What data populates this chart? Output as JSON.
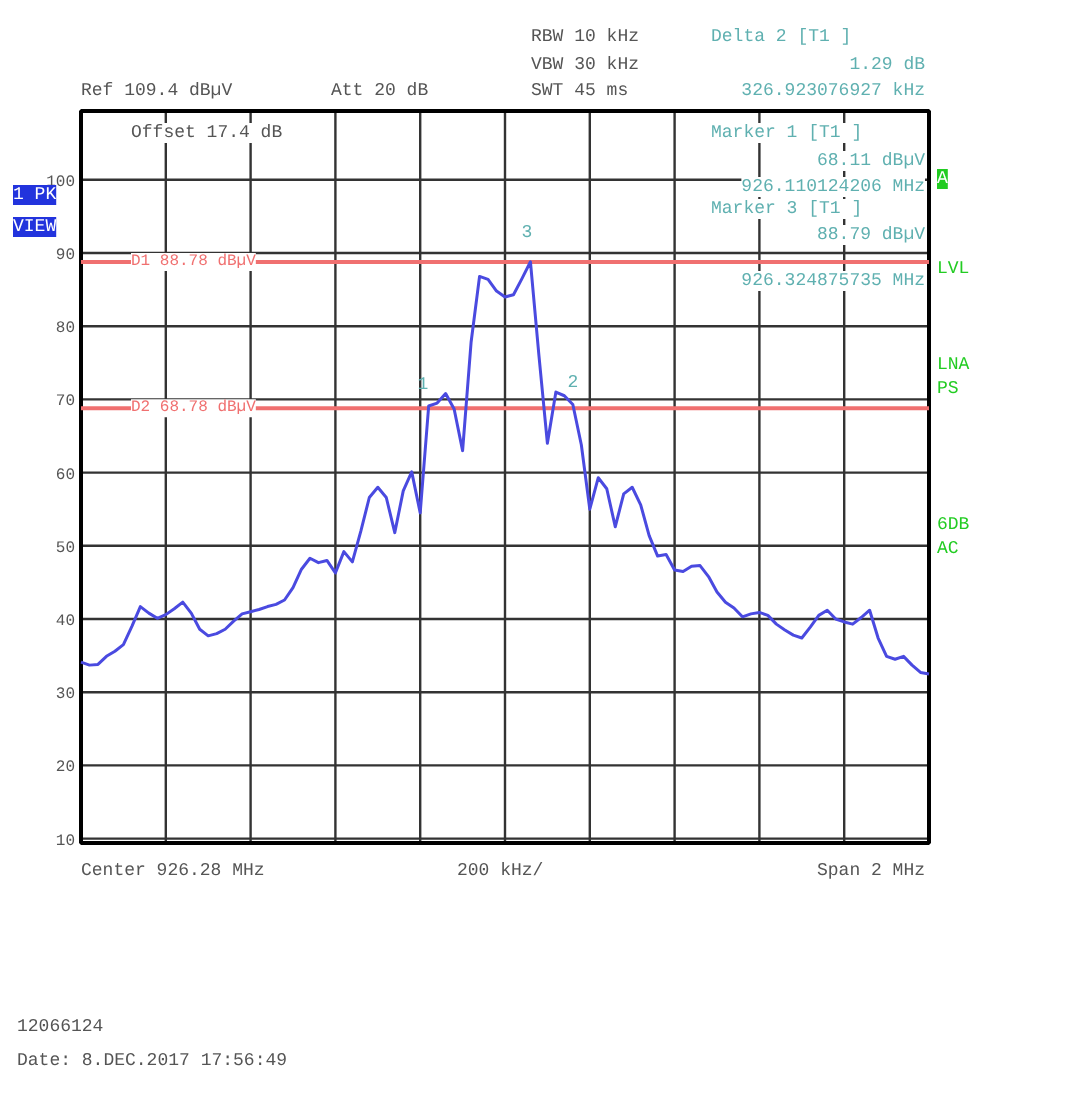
{
  "chart_data": {
    "type": "line",
    "categories": [
      null,
      null,
      null,
      null,
      null,
      null,
      null,
      null,
      null,
      null,
      null,
      null,
      null,
      null,
      null,
      null,
      null,
      null,
      null,
      null,
      null,
      null,
      null,
      null,
      null,
      null,
      null,
      null,
      null,
      null,
      null,
      null,
      null,
      null,
      null,
      null,
      null,
      null,
      null,
      null,
      null,
      null,
      null,
      null,
      null,
      null,
      null,
      null,
      null,
      null,
      null,
      null,
      null,
      null,
      null,
      null,
      null,
      null,
      null,
      null,
      null,
      null,
      null,
      null,
      null,
      null,
      null,
      null,
      null,
      null,
      null,
      null,
      null,
      null,
      null,
      null,
      null,
      null,
      null,
      null,
      null,
      null,
      null,
      null,
      null,
      null,
      null,
      null,
      null,
      null,
      null,
      null,
      null,
      null,
      null,
      null,
      null,
      null,
      null,
      null,
      null
    ],
    "series": [
      {
        "color": "#4a4ae0",
        "values": [
          34.1,
          33.7,
          33.8,
          34.9,
          35.6,
          36.5,
          39,
          41.7,
          40.8,
          40.1,
          40.6,
          41.4,
          42.3,
          40.8,
          38.6,
          37.7,
          38,
          38.6,
          39.7,
          40.7,
          41,
          41.3,
          41.7,
          42,
          42.6,
          44.3,
          46.8,
          48.3,
          47.7,
          48,
          46.3,
          49.2,
          47.8,
          52,
          56.6,
          58,
          56.6,
          51.8,
          57.5,
          60.1,
          54.5,
          69.1,
          69.5,
          70.8,
          68.7,
          63,
          77.8,
          86.8,
          86.4,
          84.8,
          84,
          84.3,
          86.5,
          88.8,
          76,
          64,
          71,
          70.5,
          69.3,
          63.8,
          55,
          59.3,
          57.8,
          52.6,
          57.1,
          58,
          55.6,
          51.4,
          48.6,
          48.8,
          46.7,
          46.5,
          47.2,
          47.3,
          45.8,
          43.7,
          42.3,
          41.5,
          40.3,
          40.7,
          40.9,
          40.5,
          39.3,
          38.5,
          37.8,
          37.4,
          38.9,
          40.5,
          41.2,
          40,
          39.6,
          39.3,
          40.2,
          41.2,
          37.4,
          34.9,
          34.5,
          34.9,
          33.7,
          32.7,
          32.5
        ]
      }
    ],
    "ylim": [
      9.4,
      109.4
    ],
    "yticks": [
      10,
      20,
      30,
      40,
      50,
      60,
      70,
      80,
      90,
      100
    ],
    "tick_labels": "y",
    "grid": true,
    "marker": "none",
    "line_style": "solid",
    "ref_lines": [
      {
        "axis": "y",
        "value": 88.78,
        "label": "D1 88.78 dBµV",
        "color": "#f07070"
      },
      {
        "axis": "y",
        "value": 68.78,
        "label": "D2 68.78 dBµV",
        "color": "#f07070"
      }
    ],
    "annotations": [
      "RBW 10 kHz",
      "VBW 30 kHz",
      "SWT 45 ms",
      "Ref 109.4 dBµV",
      "Att 20 dB",
      "Delta 2 [T1 ]",
      "1.29 dB",
      "326.923076927 kHz",
      "Offset 17.4 dB",
      "Marker 1 [T1 ]",
      "68.11 dBµV",
      "926.110124206 MHz",
      "Marker 3 [T1 ]",
      "88.79 dBµV",
      "926.324875735 MHz",
      "1 PK",
      "VIEW",
      "A",
      "LVL",
      "LNA",
      "PS",
      "6DB",
      "AC",
      "Center 926.28 MHz",
      "200 kHz/",
      "Span 2 MHz",
      "12066124",
      "Date: 8.DEC.2017  17:56:49",
      "1",
      "3",
      "2"
    ]
  }
}
